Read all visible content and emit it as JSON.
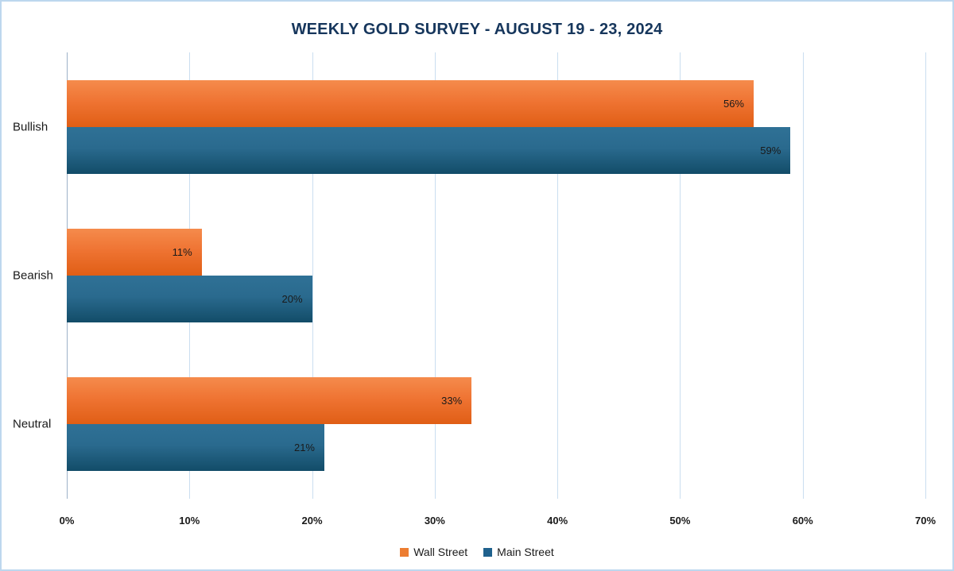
{
  "chart_data": {
    "type": "bar",
    "orientation": "horizontal",
    "title": "WEEKLY GOLD SURVEY - AUGUST 19 - 23, 2024",
    "categories": [
      "Bullish",
      "Bearish",
      "Neutral"
    ],
    "series": [
      {
        "name": "Wall Street",
        "color": "#ED7D31",
        "values": [
          56,
          11,
          33
        ]
      },
      {
        "name": "Main Street",
        "color": "#1F618D",
        "values": [
          59,
          20,
          21
        ]
      }
    ],
    "xlim": [
      0,
      70
    ],
    "ticks": [
      0,
      10,
      20,
      30,
      40,
      50,
      60,
      70
    ],
    "tick_suffix": "%",
    "value_label_suffix": "%",
    "grid": true,
    "legend_position": "bottom"
  },
  "colors": {
    "wall_street_gradient_top": "#F58B4C",
    "wall_street_gradient_bottom": "#E05E15",
    "main_street_gradient_top": "#2F7196",
    "main_street_gradient_bottom": "#124C68",
    "gridline": "#CADEF0",
    "axis_line": "#9DB2C8",
    "title_text": "#16365C",
    "canvas_border": "#BDD7EE"
  }
}
